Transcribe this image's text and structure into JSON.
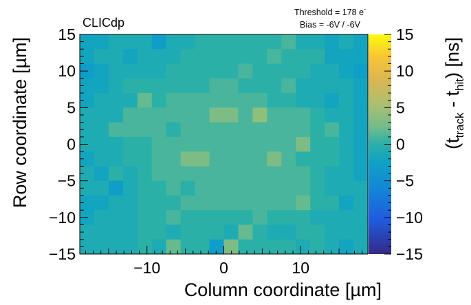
{
  "chart_data": {
    "type": "heatmap",
    "collaboration_label": "CLICdp",
    "annotations": [
      "Threshold = 178 e",
      "Bias = -6V / -6V"
    ],
    "annotation_superscript": "-",
    "xlabel": "Column coordinate [µm]",
    "ylabel": "Row coordinate [µm]",
    "zlabel": {
      "open": "(t",
      "sub1": "track",
      "mid": " - t",
      "sub2": "hit",
      "close": ") [ns]"
    },
    "xlim": [
      -18.75,
      18.75
    ],
    "ylim": [
      -15,
      15
    ],
    "zlim": [
      -15,
      15
    ],
    "x_ticks": [
      {
        "value": -10,
        "label": "−10"
      },
      {
        "value": 0,
        "label": "0"
      },
      {
        "value": 10,
        "label": "10"
      }
    ],
    "y_ticks": [
      {
        "value": 15,
        "label": "15"
      },
      {
        "value": 10,
        "label": "10"
      },
      {
        "value": 5,
        "label": "5"
      },
      {
        "value": 0,
        "label": "0"
      },
      {
        "value": -5,
        "label": "−5"
      },
      {
        "value": -10,
        "label": "−10"
      },
      {
        "value": -15,
        "label": "−15"
      }
    ],
    "z_ticks": [
      {
        "value": 15,
        "label": "15"
      },
      {
        "value": 10,
        "label": "10"
      },
      {
        "value": 5,
        "label": "5"
      },
      {
        "value": 0,
        "label": "0"
      },
      {
        "value": -5,
        "label": "−5"
      },
      {
        "value": -10,
        "label": "−10"
      },
      {
        "value": -15,
        "label": "−15"
      }
    ],
    "bins_x": 20,
    "bins_y": 15,
    "values_top_to_bottom": [
      [
        -2,
        -2,
        -1,
        -1,
        -1,
        -3,
        -1,
        -1,
        0,
        0,
        0,
        0,
        0,
        0,
        1,
        -1,
        -1,
        -2,
        -1,
        -2
      ],
      [
        -2,
        -1,
        -1,
        -2,
        -1,
        -1,
        -1,
        0,
        0,
        0,
        0,
        0,
        0,
        1,
        0,
        0,
        0,
        -2,
        -2,
        -2
      ],
      [
        -3,
        -2,
        -1,
        -1,
        -1,
        -1,
        0,
        0,
        0,
        0,
        0,
        1,
        0,
        0,
        0,
        0,
        -1,
        -1,
        -2,
        -3
      ],
      [
        -2,
        -2,
        -1,
        0,
        0,
        0,
        0,
        0,
        0,
        1,
        1,
        0,
        0,
        0,
        1,
        -1,
        -1,
        -1,
        -1,
        -2
      ],
      [
        -2,
        -1,
        -1,
        -1,
        2,
        0,
        1,
        1,
        1,
        1,
        1,
        1,
        1,
        0,
        0,
        -1,
        -1,
        -2,
        -1,
        -2
      ],
      [
        -1,
        -1,
        -1,
        1,
        1,
        1,
        1,
        1,
        1,
        3,
        3,
        1,
        4,
        1,
        1,
        1,
        0,
        -1,
        -1,
        -2
      ],
      [
        -1,
        -1,
        1,
        1,
        1,
        1,
        0,
        1,
        1,
        1,
        1,
        1,
        1,
        1,
        1,
        1,
        0,
        1,
        -1,
        -2
      ],
      [
        -1,
        -1,
        -1,
        0,
        0,
        1,
        1,
        1,
        1,
        1,
        1,
        1,
        1,
        1,
        1,
        3,
        0,
        0,
        -1,
        -2
      ],
      [
        -2,
        -1,
        -1,
        0,
        0,
        1,
        1,
        3,
        3,
        1,
        1,
        1,
        1,
        3,
        1,
        0,
        0,
        0,
        -1,
        -2
      ],
      [
        -1,
        -2,
        0,
        -1,
        0,
        1,
        1,
        1,
        1,
        1,
        1,
        1,
        1,
        1,
        1,
        1,
        0,
        -1,
        -1,
        -2
      ],
      [
        -1,
        -1,
        -3,
        -1,
        0,
        0,
        1,
        0,
        1,
        1,
        1,
        1,
        1,
        1,
        1,
        1,
        0,
        -1,
        -1,
        -1
      ],
      [
        -2,
        -2,
        -1,
        -1,
        0,
        0,
        0,
        1,
        1,
        1,
        1,
        1,
        1,
        1,
        1,
        2,
        0,
        0,
        -2,
        -1
      ],
      [
        -2,
        -1,
        -1,
        -1,
        0,
        0,
        1,
        0,
        0,
        0,
        0,
        0,
        1,
        0,
        0,
        0,
        -1,
        -1,
        -1,
        -1
      ],
      [
        -1,
        -1,
        -1,
        -1,
        0,
        0,
        -1,
        0,
        0,
        0,
        -1,
        2,
        0,
        -1,
        -1,
        0,
        0,
        -1,
        -1,
        -1
      ],
      [
        -1,
        -1,
        -1,
        -1,
        0,
        -1,
        2,
        0,
        0,
        -3,
        3,
        0,
        0,
        0,
        0,
        -1,
        0,
        -1,
        -2,
        -1
      ]
    ]
  }
}
